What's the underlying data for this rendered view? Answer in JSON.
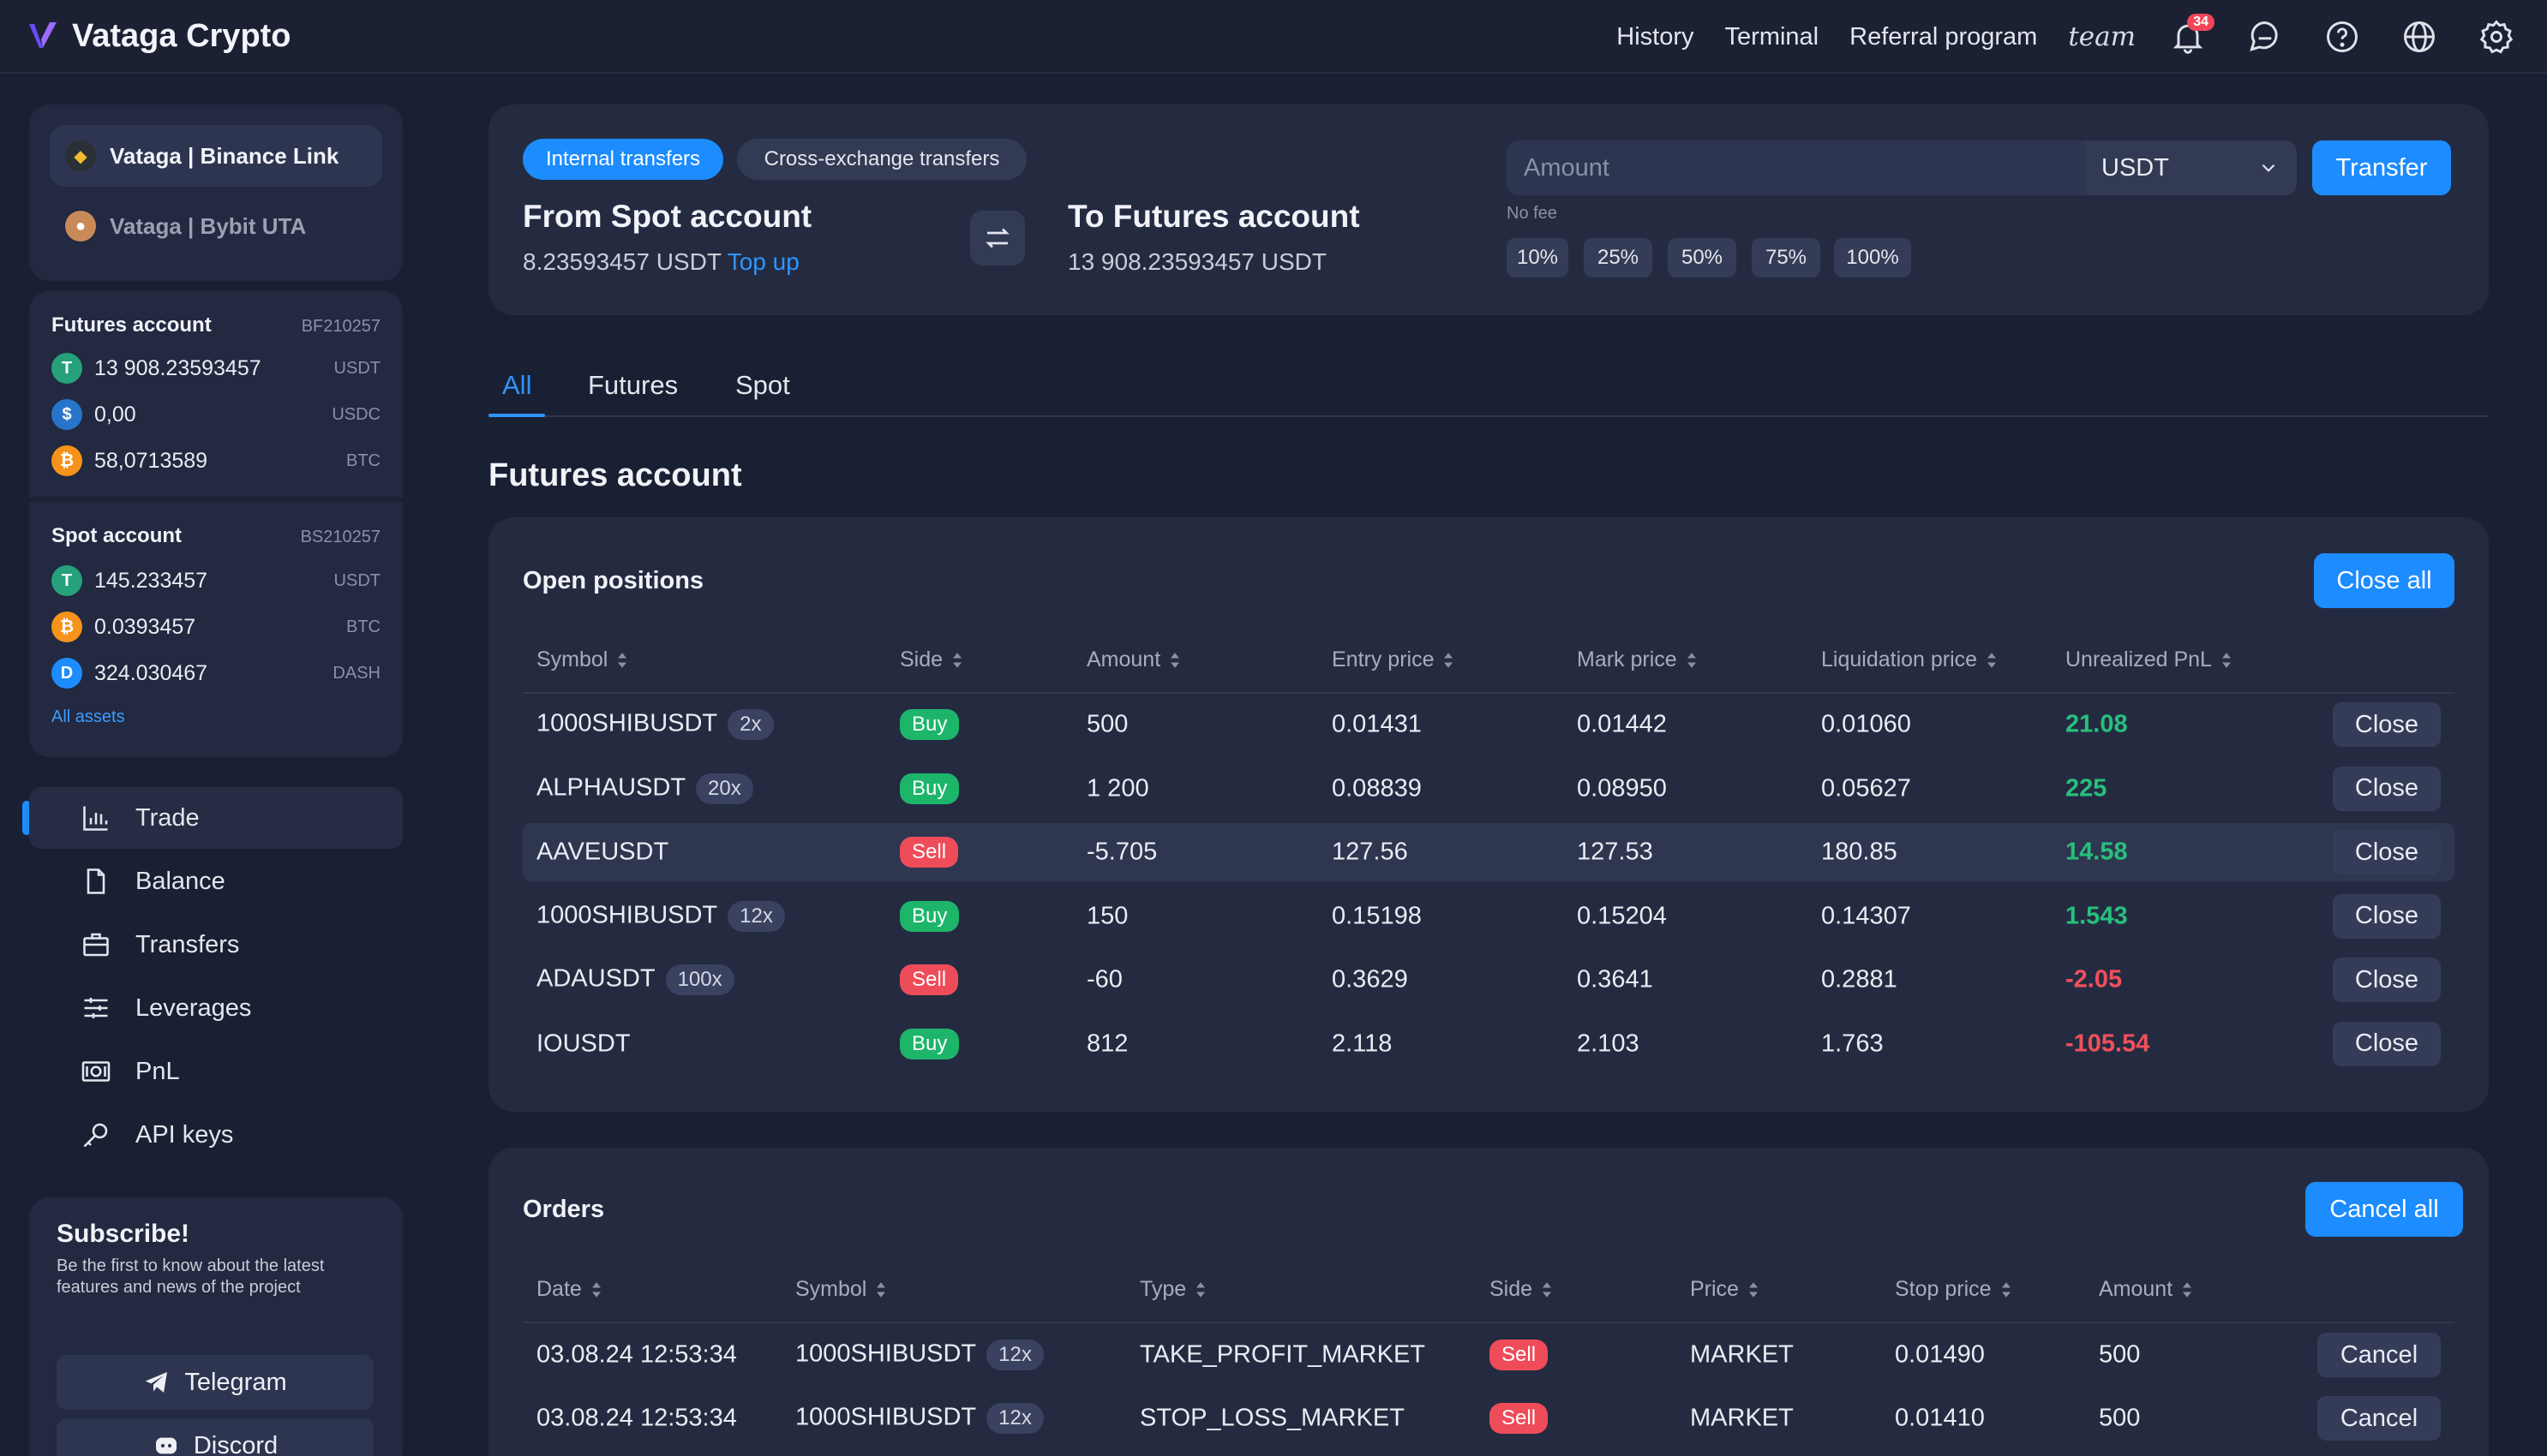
{
  "app": {
    "title": "Vataga Crypto"
  },
  "topnav": {
    "history": "History",
    "terminal": "Terminal",
    "referral": "Referral program",
    "team": "team",
    "notifications_count": "34"
  },
  "exchanges": [
    {
      "label": "Vataga | Binance Link",
      "active": true
    },
    {
      "label": "Vataga | Bybit UTA",
      "active": false
    }
  ],
  "futures_account": {
    "title": "Futures account",
    "id": "BF210257",
    "assets": [
      {
        "amount": "13 908.23593457",
        "currency": "USDT",
        "icon": "tether-icon",
        "color": "#26a17b",
        "glyph": "T"
      },
      {
        "amount": "0,00",
        "currency": "USDC",
        "icon": "usdc-icon",
        "color": "#2775ca",
        "glyph": "$"
      },
      {
        "amount": "58,0713589",
        "currency": "BTC",
        "icon": "bitcoin-icon",
        "color": "#f7931a",
        "glyph": "₿"
      }
    ]
  },
  "spot_account": {
    "title": "Spot account",
    "id": "BS210257",
    "assets": [
      {
        "amount": "145.233457",
        "currency": "USDT",
        "icon": "tether-icon",
        "color": "#26a17b",
        "glyph": "T"
      },
      {
        "amount": "0.0393457",
        "currency": "BTC",
        "icon": "bitcoin-icon",
        "color": "#f7931a",
        "glyph": "₿"
      },
      {
        "amount": "324.030467",
        "currency": "DASH",
        "icon": "dash-icon",
        "color": "#1c8cff",
        "glyph": "D"
      }
    ],
    "all_assets": "All assets"
  },
  "menu": [
    {
      "label": "Trade",
      "icon": "chart-icon",
      "active": true
    },
    {
      "label": "Balance",
      "icon": "document-icon",
      "active": false
    },
    {
      "label": "Transfers",
      "icon": "briefcase-icon",
      "active": false
    },
    {
      "label": "Leverages",
      "icon": "sliders-icon",
      "active": false
    },
    {
      "label": "PnL",
      "icon": "cash-icon",
      "active": false
    },
    {
      "label": "API keys",
      "icon": "key-icon",
      "active": false
    }
  ],
  "subscribe": {
    "title": "Subscribe!",
    "text": "Be the first to know about the latest features and news of the project",
    "telegram": "Telegram",
    "discord": "Discord"
  },
  "transfer": {
    "tab_internal": "Internal transfers",
    "tab_cross": "Cross-exchange transfers",
    "from_label": "From Spot account",
    "from_balance": "8.23593457 USDT",
    "top_up": "Top up",
    "to_label": "To Futures account",
    "to_balance": "13 908.23593457 USDT",
    "amount_placeholder": "Amount",
    "currency": "USDT",
    "button": "Transfer",
    "no_fee": "No fee",
    "percents": [
      "10%",
      "25%",
      "50%",
      "75%",
      "100%"
    ]
  },
  "tabs": [
    {
      "label": "All",
      "active": true
    },
    {
      "label": "Futures",
      "active": false
    },
    {
      "label": "Spot",
      "active": false
    }
  ],
  "section_title": "Futures account",
  "positions": {
    "title": "Open positions",
    "close_all": "Close all",
    "columns": [
      "Symbol",
      "Side",
      "Amount",
      "Entry price",
      "Mark price",
      "Liquidation price",
      "Unrealized PnL"
    ],
    "close_label": "Close",
    "rows": [
      {
        "symbol": "1000SHIBUSDT",
        "leverage": "2x",
        "side": "Buy",
        "amount": "500",
        "entry": "0.01431",
        "mark": "0.01442",
        "liq": "0.01060",
        "pnl": "21.08",
        "pnl_positive": true
      },
      {
        "symbol": "ALPHAUSDT",
        "leverage": "20x",
        "side": "Buy",
        "amount": "1 200",
        "entry": "0.08839",
        "mark": "0.08950",
        "liq": "0.05627",
        "pnl": "225",
        "pnl_positive": true
      },
      {
        "symbol": "AAVEUSDT",
        "leverage": "",
        "side": "Sell",
        "amount": "-5.705",
        "entry": "127.56",
        "mark": "127.53",
        "liq": "180.85",
        "pnl": "14.58",
        "pnl_positive": true,
        "highlight": true
      },
      {
        "symbol": "1000SHIBUSDT",
        "leverage": "12x",
        "side": "Buy",
        "amount": "150",
        "entry": "0.15198",
        "mark": "0.15204",
        "liq": "0.14307",
        "pnl": "1.543",
        "pnl_positive": true
      },
      {
        "symbol": "ADAUSDT",
        "leverage": "100x",
        "side": "Sell",
        "amount": "-60",
        "entry": "0.3629",
        "mark": "0.3641",
        "liq": "0.2881",
        "pnl": "-2.05",
        "pnl_positive": false
      },
      {
        "symbol": "IOUSDT",
        "leverage": "",
        "side": "Buy",
        "amount": "812",
        "entry": "2.118",
        "mark": "2.103",
        "liq": "1.763",
        "pnl": "-105.54",
        "pnl_positive": false
      }
    ]
  },
  "orders": {
    "title": "Orders",
    "cancel_all": "Cancel all",
    "columns": [
      "Date",
      "Symbol",
      "Type",
      "Side",
      "Price",
      "Stop price",
      "Amount"
    ],
    "cancel_label": "Cancel",
    "rows": [
      {
        "date": "03.08.24 12:53:34",
        "symbol": "1000SHIBUSDT",
        "leverage": "12x",
        "type": "TAKE_PROFIT_MARKET",
        "side": "Sell",
        "price": "MARKET",
        "stop": "0.01490",
        "amount": "500"
      },
      {
        "date": "03.08.24 12:53:34",
        "symbol": "1000SHIBUSDT",
        "leverage": "12x",
        "type": "STOP_LOSS_MARKET",
        "side": "Sell",
        "price": "MARKET",
        "stop": "0.01410",
        "amount": "500"
      }
    ]
  }
}
